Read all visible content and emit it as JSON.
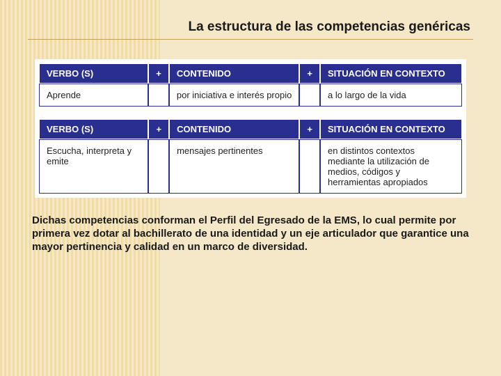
{
  "title": "La estructura de las competencias genéricas",
  "headers": {
    "verbo": "VERBO (S)",
    "plus": "+",
    "contenido": "CONTENIDO",
    "situacion": "SITUACIÓN EN CONTEXTO"
  },
  "row1": {
    "verbo": "Aprende",
    "contenido": "por iniciativa e interés propio",
    "situacion": "a lo largo de la vida"
  },
  "row2": {
    "verbo": "Escucha, interpreta y emite",
    "contenido": "mensajes pertinentes",
    "situacion": "en distintos contextos mediante la utilización de medios, códigos y herramientas apropiados"
  },
  "footer": "Dichas competencias conforman el Perfil del Egresado de la EMS, lo cual permite por primera vez dotar al bachillerato de una identidad y un eje articulador que garantice una mayor pertinencia y calidad en un marco de diversidad.",
  "colors": {
    "header_bg": "#2a2e8f",
    "header_text": "#ffffff",
    "page_bg": "#f5e8c8",
    "stripe": "#f0dca8",
    "underline": "#c9a050"
  }
}
